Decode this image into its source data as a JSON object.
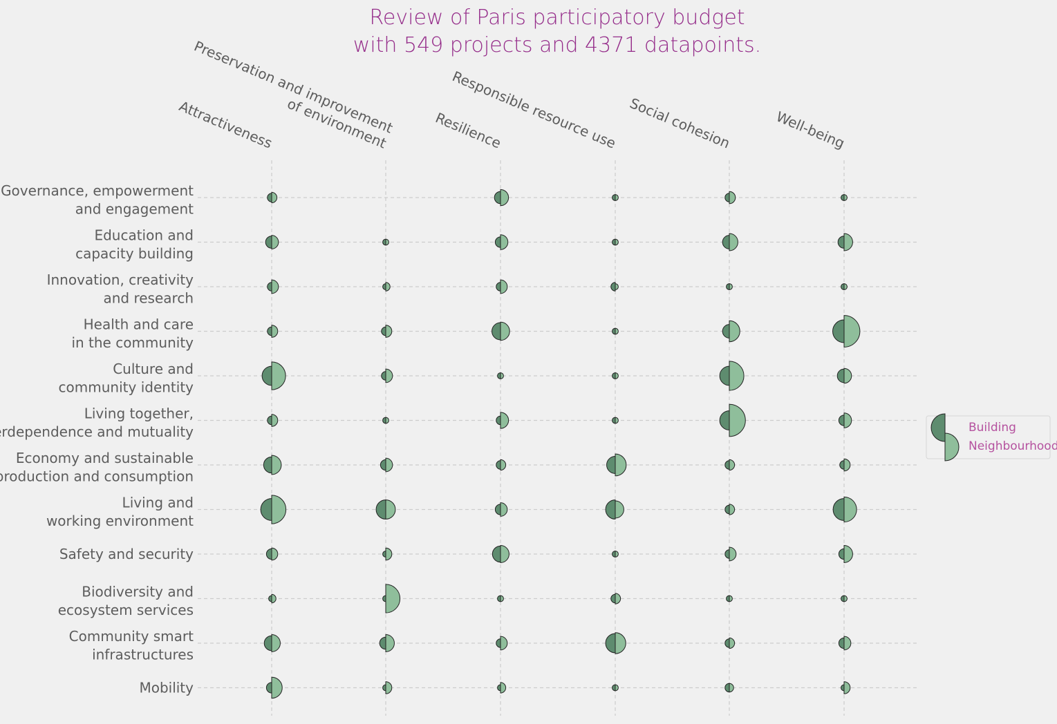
{
  "chart_data": {
    "type": "scatter",
    "title": [
      "Review of Paris participatory budget",
      "with 549 projects and 4371 datapoints."
    ],
    "columns": [
      [
        "Attractiveness"
      ],
      [
        "Preservation and improvement",
        "of environment"
      ],
      [
        "Resilience"
      ],
      [
        "Responsible resource use"
      ],
      [
        "Social cohesion"
      ],
      [
        "Well-being"
      ]
    ],
    "rows": [
      [
        "Governance, empowerment",
        "and engagement"
      ],
      [
        "Education and",
        "capacity building"
      ],
      [
        "Innovation, creativity",
        "and research"
      ],
      [
        "Health and care",
        "in the community"
      ],
      [
        "Culture and",
        "community identity"
      ],
      [
        "Living together,",
        "interdependence and mutuality"
      ],
      [
        "Economy and sustainable",
        "production and consumption"
      ],
      [
        "Living and",
        "working environment"
      ],
      [
        "Safety and security"
      ],
      [
        "Biodiversity and",
        "ecosystem services"
      ],
      [
        "Community smart",
        "infrastructures"
      ],
      [
        "Mobility"
      ]
    ],
    "series": [
      {
        "name": "Building",
        "values": [
          [
            2,
            0,
            4,
            1,
            2,
            1
          ],
          [
            4,
            1,
            3,
            1,
            5,
            4
          ],
          [
            2,
            1,
            2,
            2,
            1,
            1
          ],
          [
            2,
            2,
            8,
            1,
            5,
            14
          ],
          [
            10,
            2,
            1,
            1,
            10,
            5
          ],
          [
            2,
            1,
            2,
            1,
            10,
            3
          ],
          [
            7,
            3,
            2,
            8,
            2,
            2
          ],
          [
            13,
            10,
            3,
            10,
            2,
            13
          ],
          [
            3,
            1,
            7,
            1,
            2,
            3
          ],
          [
            1,
            1,
            1,
            2,
            1,
            1
          ],
          [
            6,
            4,
            2,
            10,
            2,
            3
          ],
          [
            3,
            1,
            1,
            1,
            2,
            1
          ]
        ]
      },
      {
        "name": "Neighbourhood",
        "values": [
          [
            3,
            0,
            7,
            1,
            4,
            1
          ],
          [
            5,
            1,
            6,
            1,
            8,
            8
          ],
          [
            5,
            2,
            5,
            1,
            1,
            1
          ],
          [
            4,
            4,
            9,
            1,
            12,
            27
          ],
          [
            21,
            5,
            1,
            1,
            23,
            6
          ],
          [
            4,
            1,
            7,
            1,
            28,
            6
          ],
          [
            10,
            5,
            3,
            13,
            3,
            4
          ],
          [
            22,
            10,
            5,
            8,
            3,
            17
          ],
          [
            4,
            4,
            8,
            1,
            5,
            8
          ],
          [
            2,
            22,
            1,
            3,
            1,
            1
          ],
          [
            8,
            8,
            5,
            12,
            3,
            5
          ],
          [
            12,
            4,
            3,
            1,
            2,
            4
          ]
        ]
      }
    ],
    "legend": {
      "position": "right",
      "entries": [
        "Building",
        "Neighbourhood"
      ]
    },
    "colors": {
      "building": "#5e8c6f",
      "neighbourhood": "#8fbe9b",
      "title": "#952d8a",
      "legend_text": "#b5529f",
      "label": "#5c5c5c",
      "grid": "#cccccc",
      "background": "#f0f0f0"
    },
    "grid": true
  }
}
